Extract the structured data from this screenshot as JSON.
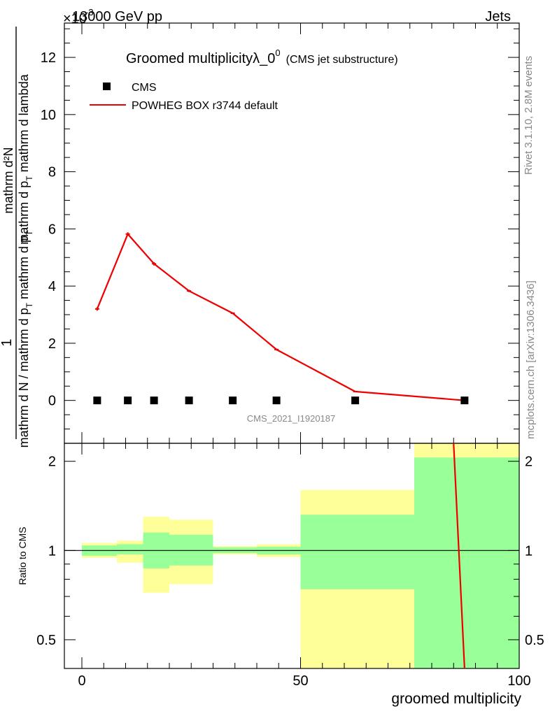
{
  "header": {
    "energy_label": "13000 GeV pp",
    "process_label": "Jets"
  },
  "exponent_label": "×10",
  "exponent_power": "-3",
  "title": {
    "main": "Groomed multiplicityλ_0",
    "sup": "0",
    "sub": "(CMS jet substructure)"
  },
  "watermark": "CMS_2021_I1920187",
  "side_text": {
    "rivet": "Rivet 3.1.10,  2.8M events",
    "mcplots": "mcplots.cern.ch [arXiv:1306.3436]"
  },
  "legend": {
    "cms_label": "CMS",
    "mc_label": "POWHEG BOX r3744 default"
  },
  "ylabel_main": {
    "numerator": "mathrm d²N",
    "numerator_line2": "mathrm d p",
    "numerator_sub": "T",
    "numerator_tail": " mathrm d lambda",
    "fraction_one": "1",
    "denominator": "mathrm d N / mathrm d p",
    "denominator_sub": "T",
    "denominator_tail": " mathrm d p",
    "denominator_tail_sub": "T"
  },
  "ylabel_ratio": "Ratio to CMS",
  "xlabel": "groomed multiplicity",
  "colors": {
    "mc": "#ee0000",
    "band_inner": "#99ff99",
    "band_outer": "#ffff99",
    "data": "#000000"
  },
  "chart_data": [
    {
      "type": "line",
      "panel": "main",
      "xlim": [
        -4,
        100
      ],
      "ylim": [
        -1.5,
        13.2
      ],
      "y_multiplier": 0.001,
      "yticks": [
        0,
        2,
        4,
        6,
        8,
        10,
        12
      ],
      "series": [
        {
          "name": "CMS",
          "style": "markers",
          "x": [
            3.5,
            10.5,
            16.5,
            24.5,
            34.5,
            44.5,
            62.5,
            87.5
          ],
          "y": [
            0,
            0,
            0,
            0,
            0,
            0,
            0,
            0
          ]
        },
        {
          "name": "POWHEG BOX r3744 default",
          "style": "line",
          "x": [
            3.5,
            10.5,
            16.5,
            24.5,
            34.5,
            44.5,
            62.5,
            87.5
          ],
          "y": [
            3.2,
            5.82,
            4.78,
            3.83,
            3.05,
            1.78,
            0.31,
            0.0
          ],
          "yerr": [
            0.06,
            0.06,
            0.06,
            0.04,
            0.03,
            0.03,
            0.02,
            0.005
          ]
        }
      ]
    },
    {
      "type": "area",
      "panel": "ratio",
      "xlim": [
        -4,
        100
      ],
      "ylim": [
        0.4,
        2.3
      ],
      "ylabel": "Ratio to CMS",
      "xlabel": "groomed multiplicity",
      "xticks": [
        0,
        50,
        100
      ],
      "yticks": [
        0.5,
        1,
        2
      ],
      "bins": [
        {
          "x0": 0,
          "x1": 8,
          "inner": [
            0.96,
            1.04
          ],
          "outer": [
            0.945,
            1.06
          ]
        },
        {
          "x0": 8,
          "x1": 14,
          "inner": [
            0.97,
            1.05
          ],
          "outer": [
            0.91,
            1.08
          ]
        },
        {
          "x0": 14,
          "x1": 20,
          "inner": [
            0.87,
            1.15
          ],
          "outer": [
            0.72,
            1.3
          ]
        },
        {
          "x0": 20,
          "x1": 30,
          "inner": [
            0.89,
            1.13
          ],
          "outer": [
            0.77,
            1.27
          ]
        },
        {
          "x0": 30,
          "x1": 40,
          "inner": [
            0.98,
            1.025
          ],
          "outer": [
            0.97,
            1.035
          ]
        },
        {
          "x0": 40,
          "x1": 50,
          "inner": [
            0.97,
            1.03
          ],
          "outer": [
            0.95,
            1.05
          ]
        },
        {
          "x0": 50,
          "x1": 76,
          "inner": [
            0.74,
            1.32
          ],
          "outer": [
            0.4,
            1.6
          ]
        },
        {
          "x0": 76,
          "x1": 100,
          "inner": [
            0.4,
            2.06
          ],
          "outer": [
            0.4,
            2.3
          ]
        }
      ],
      "series": [
        {
          "name": "POWHEG BOX r3744 default",
          "x": [
            85,
            87.5
          ],
          "y": [
            2.3,
            0.4
          ]
        }
      ]
    }
  ]
}
